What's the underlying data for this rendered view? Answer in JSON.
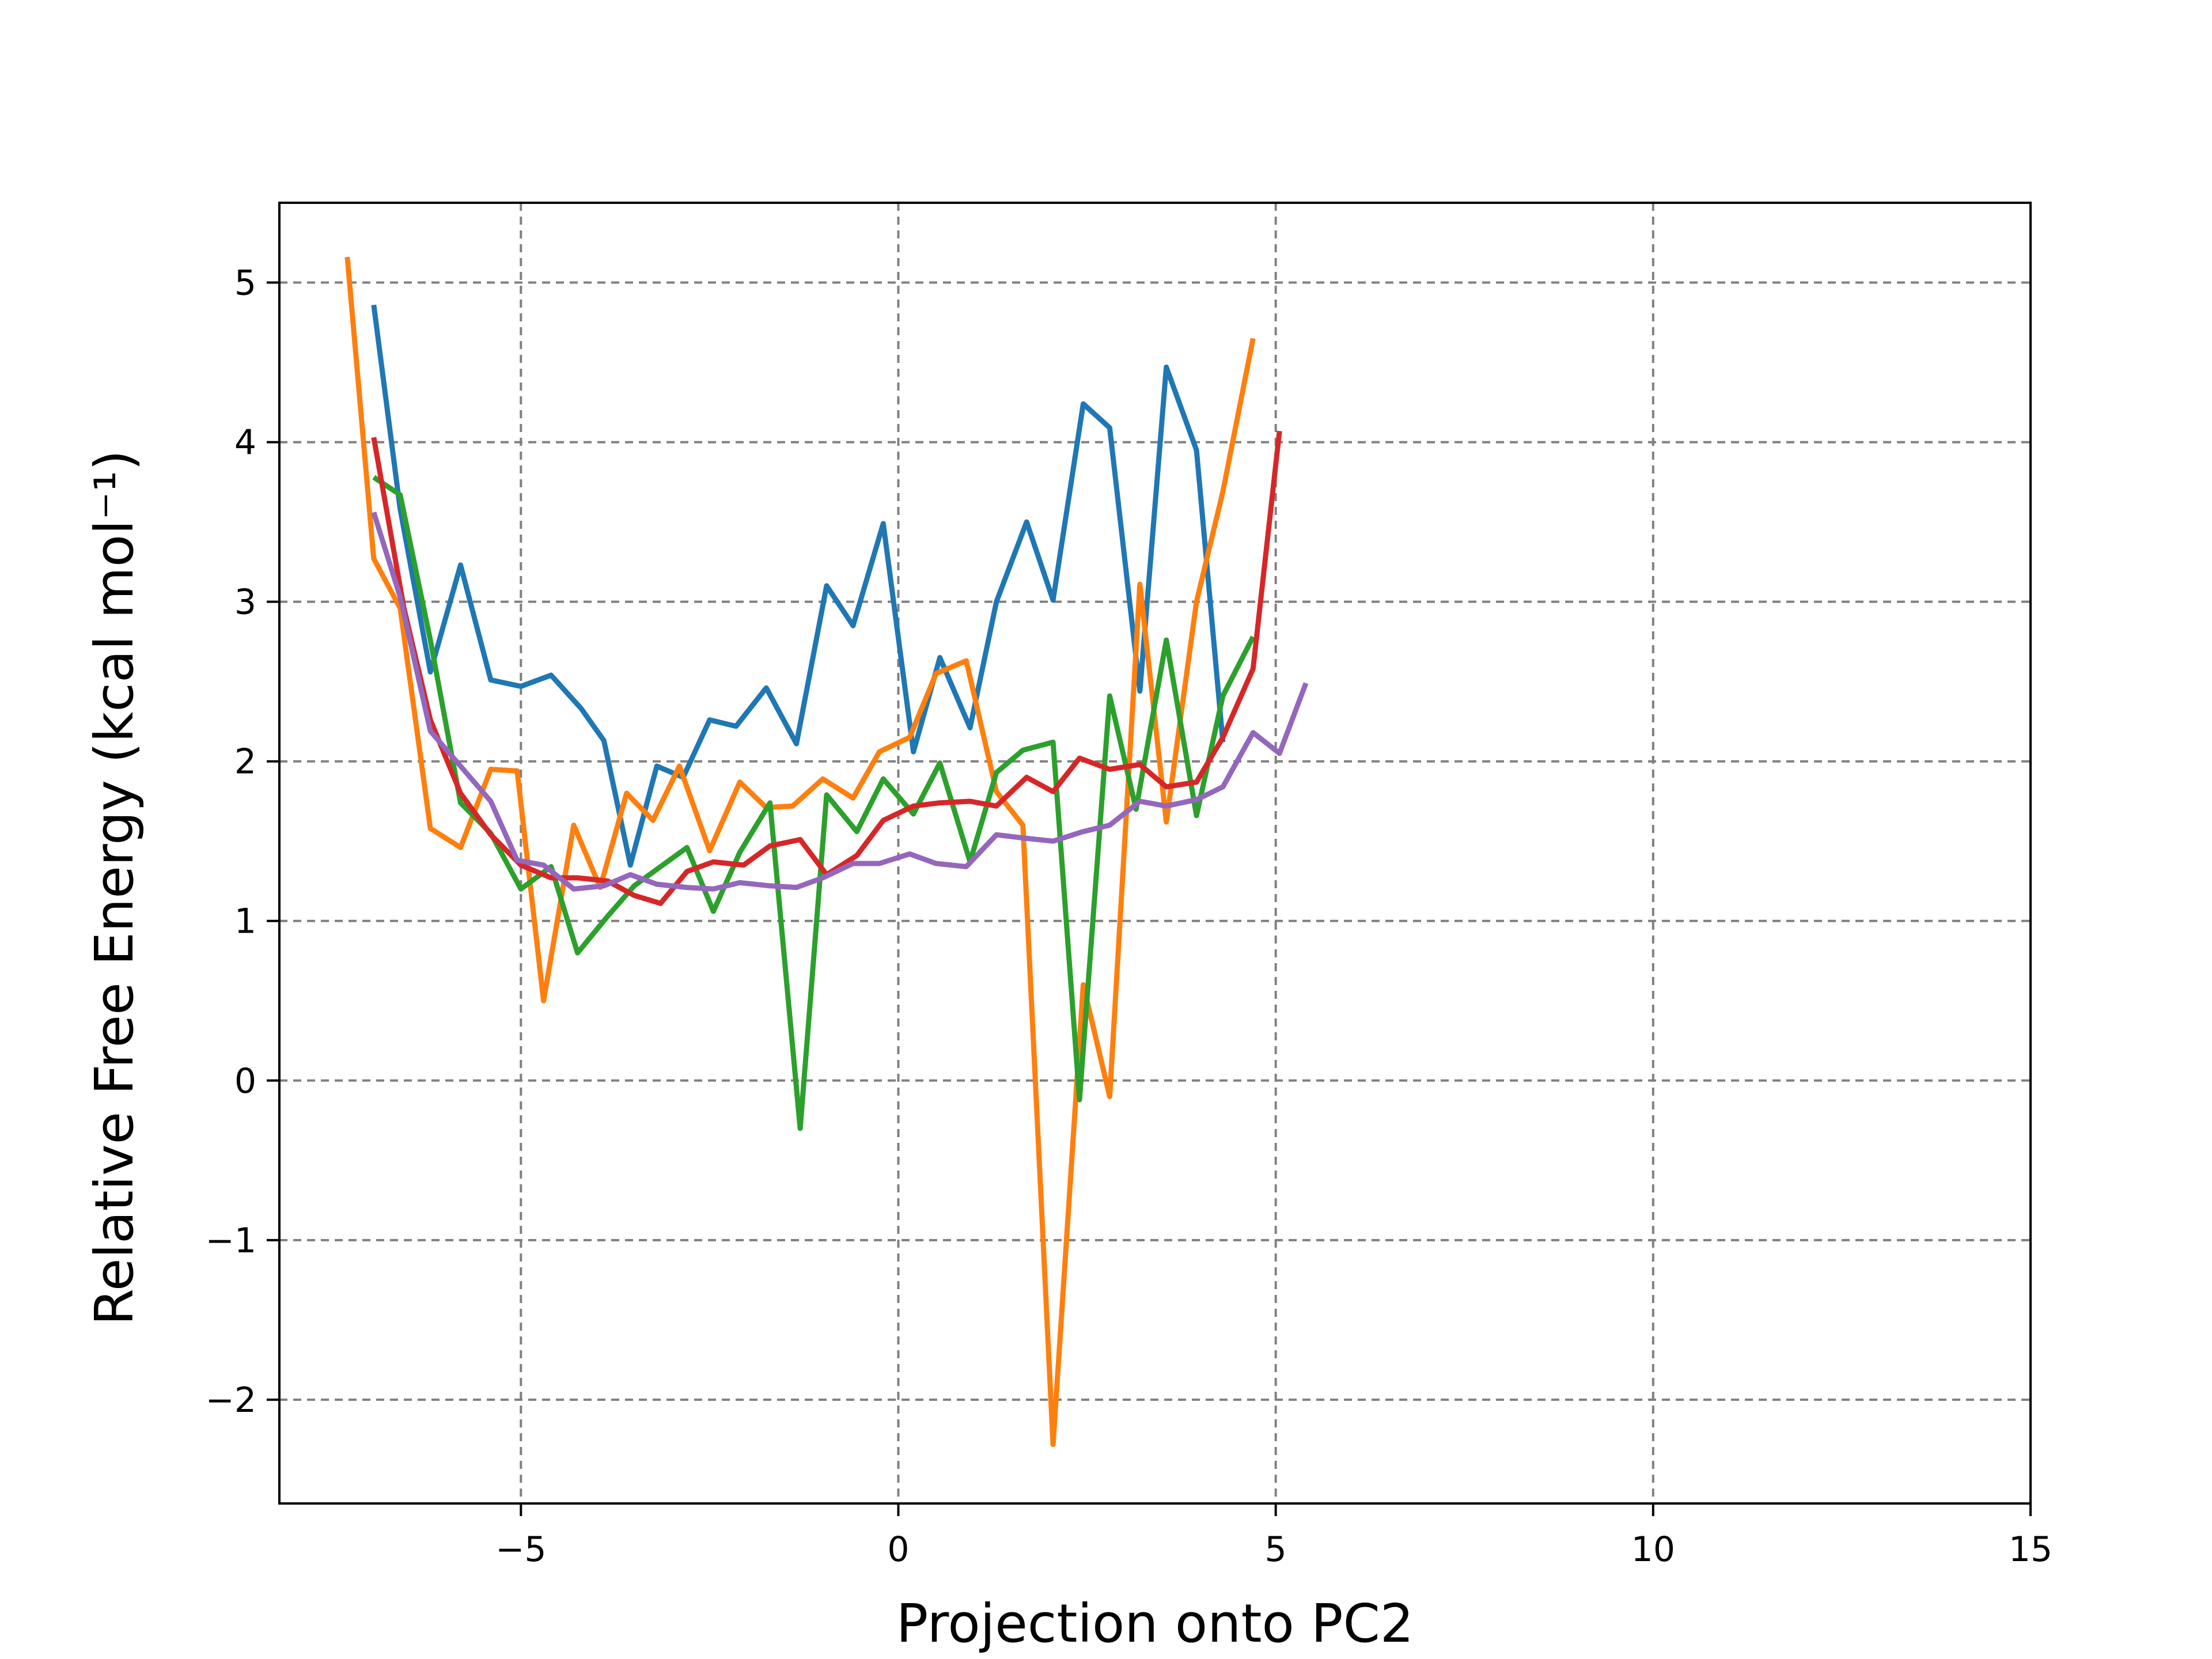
{
  "chart_data": {
    "type": "line",
    "xlabel": "Projection onto PC2",
    "ylabel": "Relative Free Energy (kcal mol⁻¹)",
    "xlim": [
      -8.2,
      15
    ],
    "ylim": [
      -2.65,
      5.5
    ],
    "xticks": [
      -5,
      0,
      5,
      10,
      15
    ],
    "xtick_labels": [
      "−5",
      "0",
      "5",
      "10",
      "15"
    ],
    "yticks": [
      -2,
      -1,
      0,
      1,
      2,
      3,
      4,
      5
    ],
    "ytick_labels": [
      "−2",
      "−1",
      "0",
      "1",
      "2",
      "3",
      "4",
      "5"
    ],
    "grid": true,
    "series": [
      {
        "color": "#1f77b4",
        "x": [
          -6.95,
          -6.6,
          -6.2,
          -5.8,
          -5.4,
          -5.0,
          -4.6,
          -4.2,
          -3.9,
          -3.55,
          -3.2,
          -2.85,
          -2.5,
          -2.15,
          -1.75,
          -1.35,
          -0.95,
          -0.6,
          -0.2,
          0.2,
          0.55,
          0.95,
          1.3,
          1.7,
          2.05,
          2.45,
          2.8,
          3.2,
          3.55,
          3.95,
          4.3
        ],
        "y": [
          4.86,
          3.58,
          2.56,
          3.23,
          2.51,
          2.47,
          2.54,
          2.33,
          2.13,
          1.35,
          1.97,
          1.9,
          2.26,
          2.22,
          2.46,
          2.11,
          3.1,
          2.85,
          3.49,
          2.06,
          2.65,
          2.21,
          3.0,
          3.5,
          3.01,
          4.24,
          4.09,
          2.44,
          4.47,
          3.95,
          2.12
        ]
      },
      {
        "color": "#ff7f0e",
        "x": [
          -7.3,
          -6.95,
          -6.6,
          -6.2,
          -5.8,
          -5.4,
          -5.05,
          -4.7,
          -4.3,
          -3.95,
          -3.6,
          -3.25,
          -2.9,
          -2.5,
          -2.1,
          -1.75,
          -1.4,
          -1.0,
          -0.6,
          -0.25,
          0.15,
          0.5,
          0.9,
          1.3,
          1.65,
          2.05,
          2.45,
          2.8,
          3.2,
          3.55,
          3.95,
          4.3,
          4.7
        ],
        "y": [
          5.16,
          3.27,
          2.96,
          1.58,
          1.46,
          1.95,
          1.94,
          0.5,
          1.6,
          1.21,
          1.8,
          1.63,
          1.97,
          1.44,
          1.87,
          1.71,
          1.72,
          1.89,
          1.77,
          2.06,
          2.15,
          2.55,
          2.63,
          1.81,
          1.6,
          -2.28,
          0.6,
          -0.1,
          3.11,
          1.62,
          3.0,
          3.69,
          4.65
        ]
      },
      {
        "color": "#2ca02c",
        "x": [
          -6.95,
          -6.6,
          -6.2,
          -5.8,
          -5.4,
          -5.0,
          -4.6,
          -4.25,
          -3.85,
          -3.5,
          -3.15,
          -2.8,
          -2.45,
          -2.1,
          -1.7,
          -1.3,
          -0.95,
          -0.55,
          -0.2,
          0.2,
          0.55,
          0.95,
          1.3,
          1.65,
          2.05,
          2.4,
          2.8,
          3.15,
          3.55,
          3.95,
          4.3,
          4.7
        ],
        "y": [
          3.78,
          3.67,
          2.76,
          1.74,
          1.55,
          1.2,
          1.34,
          0.8,
          1.03,
          1.22,
          1.34,
          1.46,
          1.06,
          1.43,
          1.74,
          -0.3,
          1.79,
          1.56,
          1.89,
          1.67,
          1.99,
          1.37,
          1.93,
          2.07,
          2.12,
          -0.12,
          2.41,
          1.7,
          2.76,
          1.66,
          2.41,
          2.78
        ]
      },
      {
        "color": "#d62728",
        "x": [
          -6.95,
          -6.55,
          -6.2,
          -5.8,
          -5.4,
          -5.0,
          -4.6,
          -4.25,
          -3.85,
          -3.5,
          -3.15,
          -2.8,
          -2.45,
          -2.05,
          -1.7,
          -1.3,
          -0.95,
          -0.55,
          -0.2,
          0.2,
          0.55,
          0.95,
          1.3,
          1.7,
          2.05,
          2.4,
          2.8,
          3.2,
          3.55,
          3.95,
          4.3,
          4.7,
          5.05
        ],
        "y": [
          4.03,
          2.96,
          2.26,
          1.8,
          1.54,
          1.35,
          1.27,
          1.27,
          1.25,
          1.16,
          1.11,
          1.31,
          1.37,
          1.35,
          1.47,
          1.51,
          1.29,
          1.41,
          1.63,
          1.72,
          1.74,
          1.75,
          1.72,
          1.9,
          1.81,
          2.02,
          1.95,
          1.98,
          1.84,
          1.87,
          2.15,
          2.58,
          4.07
        ]
      },
      {
        "color": "#9467bd",
        "x": [
          -6.95,
          -6.6,
          -6.2,
          -5.8,
          -5.4,
          -5.05,
          -4.7,
          -4.3,
          -3.9,
          -3.55,
          -3.2,
          -2.8,
          -2.45,
          -2.1,
          -1.7,
          -1.35,
          -1.0,
          -0.6,
          -0.25,
          0.15,
          0.5,
          0.9,
          1.3,
          1.65,
          2.05,
          2.45,
          2.8,
          3.2,
          3.55,
          3.95,
          4.3,
          4.7,
          5.05,
          5.4
        ],
        "y": [
          3.56,
          3.03,
          2.19,
          1.97,
          1.75,
          1.38,
          1.35,
          1.2,
          1.22,
          1.29,
          1.23,
          1.21,
          1.2,
          1.24,
          1.22,
          1.21,
          1.27,
          1.36,
          1.36,
          1.42,
          1.36,
          1.34,
          1.54,
          1.52,
          1.5,
          1.56,
          1.6,
          1.75,
          1.72,
          1.76,
          1.84,
          2.18,
          2.05,
          2.49
        ]
      }
    ]
  }
}
